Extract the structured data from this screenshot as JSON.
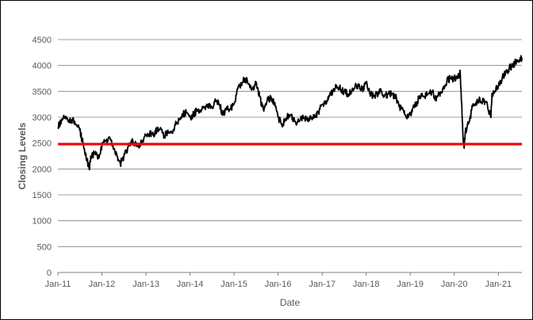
{
  "chart_data": {
    "type": "line",
    "title": "",
    "xlabel": "Date",
    "ylabel": "Closing Levels",
    "ylim": [
      0,
      4500
    ],
    "xlim": [
      "2011-01-01",
      "2021-07-15"
    ],
    "yticks": [
      0,
      500,
      1000,
      1500,
      2000,
      2500,
      3000,
      3500,
      4000,
      4500
    ],
    "xtick_labels": [
      "Jan-11",
      "Jan-12",
      "Jan-13",
      "Jan-14",
      "Jan-15",
      "Jan-16",
      "Jan-17",
      "Jan-18",
      "Jan-19",
      "Jan-20",
      "Jan-21"
    ],
    "xtick_dates": [
      "2011-01-01",
      "2012-01-01",
      "2013-01-01",
      "2014-01-01",
      "2015-01-01",
      "2016-01-01",
      "2017-01-01",
      "2018-01-01",
      "2019-01-01",
      "2020-01-01",
      "2021-01-01"
    ],
    "grid": true,
    "series": [
      {
        "color": "#000000",
        "points": [
          [
            "2011-01-01",
            2800
          ],
          [
            "2011-02-01",
            2950
          ],
          [
            "2011-03-01",
            3000
          ],
          [
            "2011-04-01",
            2900
          ],
          [
            "2011-05-01",
            2950
          ],
          [
            "2011-06-01",
            2850
          ],
          [
            "2011-07-01",
            2750
          ],
          [
            "2011-08-01",
            2450
          ],
          [
            "2011-09-01",
            2150
          ],
          [
            "2011-09-20",
            2000
          ],
          [
            "2011-10-01",
            2250
          ],
          [
            "2011-11-01",
            2300
          ],
          [
            "2011-12-01",
            2200
          ],
          [
            "2012-01-01",
            2450
          ],
          [
            "2012-02-01",
            2550
          ],
          [
            "2012-03-01",
            2600
          ],
          [
            "2012-04-01",
            2450
          ],
          [
            "2012-05-01",
            2300
          ],
          [
            "2012-06-01",
            2100
          ],
          [
            "2012-07-01",
            2250
          ],
          [
            "2012-08-01",
            2400
          ],
          [
            "2012-09-01",
            2550
          ],
          [
            "2012-10-01",
            2500
          ],
          [
            "2012-11-01",
            2450
          ],
          [
            "2012-12-01",
            2550
          ],
          [
            "2013-01-01",
            2650
          ],
          [
            "2013-02-01",
            2700
          ],
          [
            "2013-03-01",
            2650
          ],
          [
            "2013-04-01",
            2750
          ],
          [
            "2013-05-01",
            2800
          ],
          [
            "2013-06-01",
            2600
          ],
          [
            "2013-07-01",
            2750
          ],
          [
            "2013-08-01",
            2700
          ],
          [
            "2013-09-01",
            2850
          ],
          [
            "2013-10-01",
            2950
          ],
          [
            "2013-11-01",
            3050
          ],
          [
            "2013-12-01",
            3100
          ],
          [
            "2014-01-01",
            3000
          ],
          [
            "2014-02-01",
            3050
          ],
          [
            "2014-03-01",
            3150
          ],
          [
            "2014-04-01",
            3100
          ],
          [
            "2014-05-01",
            3200
          ],
          [
            "2014-06-01",
            3250
          ],
          [
            "2014-07-01",
            3200
          ],
          [
            "2014-08-01",
            3300
          ],
          [
            "2014-09-01",
            3250
          ],
          [
            "2014-10-01",
            3050
          ],
          [
            "2014-11-01",
            3200
          ],
          [
            "2014-12-01",
            3150
          ],
          [
            "2015-01-01",
            3250
          ],
          [
            "2015-02-01",
            3550
          ],
          [
            "2015-03-01",
            3650
          ],
          [
            "2015-04-01",
            3750
          ],
          [
            "2015-05-01",
            3650
          ],
          [
            "2015-06-01",
            3550
          ],
          [
            "2015-07-01",
            3650
          ],
          [
            "2015-08-01",
            3400
          ],
          [
            "2015-09-01",
            3150
          ],
          [
            "2015-10-01",
            3300
          ],
          [
            "2015-11-01",
            3400
          ],
          [
            "2015-12-01",
            3250
          ],
          [
            "2016-01-01",
            3000
          ],
          [
            "2016-02-01",
            2850
          ],
          [
            "2016-03-01",
            2950
          ],
          [
            "2016-04-01",
            3050
          ],
          [
            "2016-05-01",
            3000
          ],
          [
            "2016-06-01",
            2850
          ],
          [
            "2016-07-01",
            2950
          ],
          [
            "2016-08-01",
            3000
          ],
          [
            "2016-09-01",
            2950
          ],
          [
            "2016-10-01",
            3000
          ],
          [
            "2016-11-01",
            3000
          ],
          [
            "2016-12-01",
            3100
          ],
          [
            "2017-01-01",
            3250
          ],
          [
            "2017-02-01",
            3300
          ],
          [
            "2017-03-01",
            3400
          ],
          [
            "2017-04-01",
            3500
          ],
          [
            "2017-05-01",
            3600
          ],
          [
            "2017-06-01",
            3550
          ],
          [
            "2017-07-01",
            3500
          ],
          [
            "2017-08-01",
            3450
          ],
          [
            "2017-09-01",
            3500
          ],
          [
            "2017-10-01",
            3600
          ],
          [
            "2017-11-01",
            3600
          ],
          [
            "2017-12-01",
            3550
          ],
          [
            "2018-01-01",
            3650
          ],
          [
            "2018-02-01",
            3450
          ],
          [
            "2018-03-01",
            3400
          ],
          [
            "2018-04-01",
            3450
          ],
          [
            "2018-05-01",
            3550
          ],
          [
            "2018-06-01",
            3400
          ],
          [
            "2018-07-01",
            3450
          ],
          [
            "2018-08-01",
            3450
          ],
          [
            "2018-09-01",
            3400
          ],
          [
            "2018-10-01",
            3200
          ],
          [
            "2018-11-01",
            3150
          ],
          [
            "2018-12-01",
            3000
          ],
          [
            "2019-01-01",
            3050
          ],
          [
            "2019-02-01",
            3200
          ],
          [
            "2019-03-01",
            3300
          ],
          [
            "2019-04-01",
            3450
          ],
          [
            "2019-05-01",
            3400
          ],
          [
            "2019-06-01",
            3450
          ],
          [
            "2019-07-01",
            3500
          ],
          [
            "2019-08-01",
            3350
          ],
          [
            "2019-09-01",
            3450
          ],
          [
            "2019-10-01",
            3550
          ],
          [
            "2019-11-01",
            3700
          ],
          [
            "2019-12-01",
            3750
          ],
          [
            "2020-01-01",
            3750
          ],
          [
            "2020-02-01",
            3800
          ],
          [
            "2020-02-20",
            3850
          ],
          [
            "2020-03-01",
            3300
          ],
          [
            "2020-03-12",
            2700
          ],
          [
            "2020-03-23",
            2400
          ],
          [
            "2020-04-01",
            2700
          ],
          [
            "2020-05-01",
            2900
          ],
          [
            "2020-06-01",
            3200
          ],
          [
            "2020-07-01",
            3300
          ],
          [
            "2020-08-01",
            3350
          ],
          [
            "2020-09-01",
            3300
          ],
          [
            "2020-10-01",
            3250
          ],
          [
            "2020-10-30",
            3000
          ],
          [
            "2020-11-10",
            3450
          ],
          [
            "2020-12-01",
            3500
          ],
          [
            "2021-01-01",
            3600
          ],
          [
            "2021-02-01",
            3750
          ],
          [
            "2021-03-01",
            3850
          ],
          [
            "2021-04-01",
            3950
          ],
          [
            "2021-05-01",
            4000
          ],
          [
            "2021-06-01",
            4100
          ],
          [
            "2021-07-01",
            4150
          ],
          [
            "2021-07-15",
            4100
          ]
        ]
      }
    ],
    "reference_line": {
      "y": 2480,
      "color": "#ff0000"
    }
  }
}
